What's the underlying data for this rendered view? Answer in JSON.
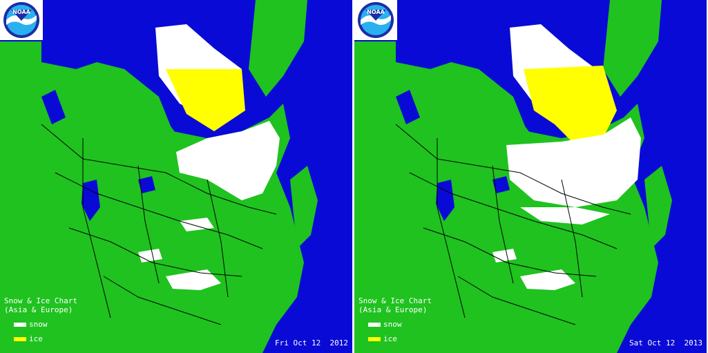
{
  "colors": {
    "ocean": "#0a0ad6",
    "land": "#1fc21f",
    "snow": "#ffffff",
    "ice": "#ffff00",
    "border": "#000000"
  },
  "logo": {
    "text": "NOAA"
  },
  "legend": {
    "title": "Snow & Ice Chart",
    "subtitle": "(Asia & Europe)",
    "snow_label": "snow",
    "ice_label": "ice"
  },
  "panels": [
    {
      "date": "Fri Oct 12  2012"
    },
    {
      "date": "Sat Oct 12  2013"
    }
  ]
}
